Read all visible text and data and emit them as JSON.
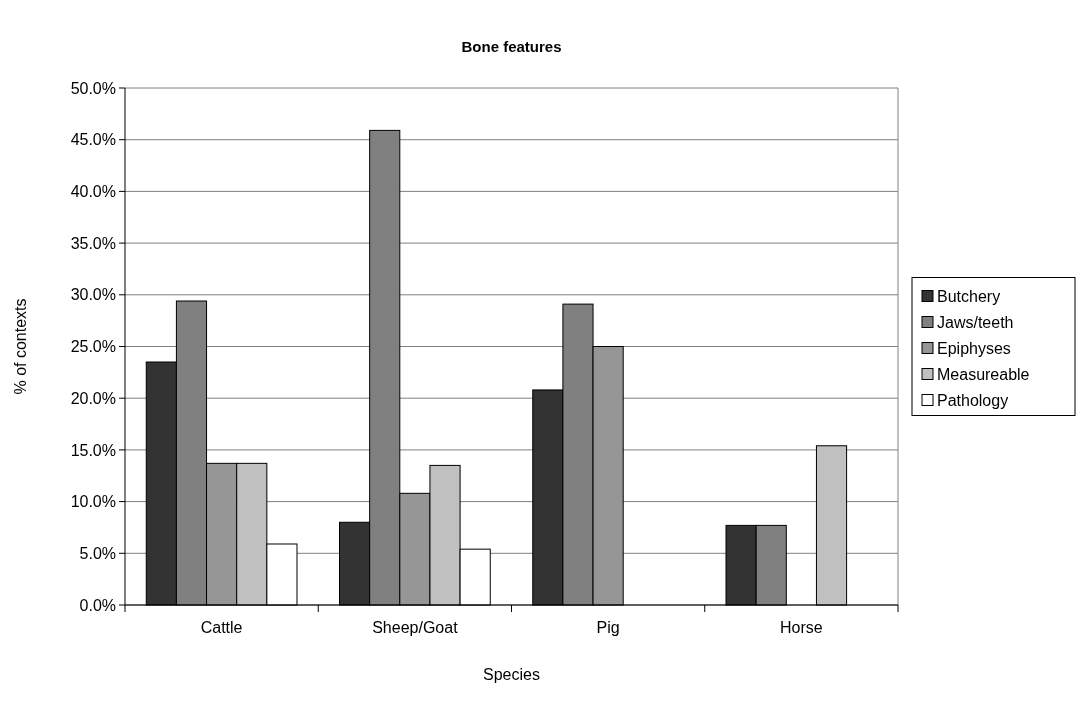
{
  "chart_data": {
    "type": "bar",
    "title": "Bone features",
    "xlabel": "Species",
    "ylabel": "% of contexts",
    "categories": [
      "Cattle",
      "Sheep/Goat",
      "Pig",
      "Horse"
    ],
    "series": [
      {
        "name": "Butchery",
        "color": "#333333",
        "values": [
          23.5,
          8.0,
          20.8,
          7.7
        ]
      },
      {
        "name": "Jaws/teeth",
        "color": "#808080",
        "values": [
          29.4,
          45.9,
          29.1,
          7.7
        ]
      },
      {
        "name": "Epiphyses",
        "color": "#969696",
        "values": [
          13.7,
          10.8,
          25.0,
          0
        ]
      },
      {
        "name": "Measureable",
        "color": "#c0c0c0",
        "values": [
          13.7,
          13.5,
          0,
          15.4
        ]
      },
      {
        "name": "Pathology",
        "color": "#ffffff",
        "values": [
          5.9,
          5.4,
          0,
          0
        ]
      }
    ],
    "ylim": [
      0,
      50
    ],
    "yticks": [
      {
        "value": 0,
        "label": "0.0%"
      },
      {
        "value": 5,
        "label": "5.0%"
      },
      {
        "value": 10,
        "label": "10.0%"
      },
      {
        "value": 15,
        "label": "15.0%"
      },
      {
        "value": 20,
        "label": "20.0%"
      },
      {
        "value": 25,
        "label": "25.0%"
      },
      {
        "value": 30,
        "label": "30.0%"
      },
      {
        "value": 35,
        "label": "35.0%"
      },
      {
        "value": 40,
        "label": "40.0%"
      },
      {
        "value": 45,
        "label": "45.0%"
      },
      {
        "value": 50,
        "label": "50.0%"
      }
    ],
    "grid": "y",
    "legend": "right"
  }
}
